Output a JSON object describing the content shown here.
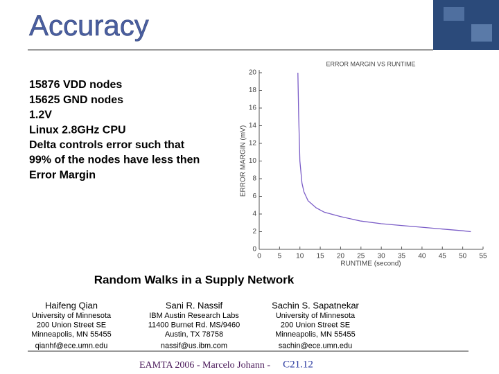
{
  "slide": {
    "title": "Accuracy",
    "bullets": [
      "15876 VDD nodes",
      "15625 GND nodes",
      "1.2V",
      "Linux 2.8GHz CPU",
      "Delta controls error such that",
      "99% of the nodes have less then",
      "Error Margin"
    ],
    "paper": {
      "title": "Random Walks in a Supply Network",
      "authors": [
        {
          "name": "Haifeng Qian",
          "lines": [
            "University of Minnesota",
            "200 Union Street SE",
            "Minneapolis, MN 55455",
            "qianhf@ece.umn.edu"
          ]
        },
        {
          "name": "Sani R. Nassif",
          "lines": [
            "IBM Austin Research Labs",
            "11400 Burnet Rd. MS/9460",
            "Austin, TX 78758",
            "nassif@us.ibm.com"
          ]
        },
        {
          "name": "Sachin S. Sapatnekar",
          "lines": [
            "University of Minnesota",
            "200 Union Street SE",
            "Minneapolis, MN 55455",
            "sachin@ece.umn.edu"
          ]
        }
      ]
    },
    "footer": {
      "text": "EAMTA 2006 - Marcelo Johann -",
      "code": "C21.12"
    }
  },
  "chart_data": {
    "type": "line",
    "title": "ERROR MARGIN VS RUNTIME",
    "x_label": "RUNTIME (second)",
    "y_label": "ERROR MARGIN (mV)",
    "x": [
      9.5,
      9.7,
      10,
      10.5,
      11,
      12,
      14,
      16,
      20,
      25,
      30,
      35,
      40,
      45,
      50,
      52
    ],
    "values": [
      20,
      15,
      10,
      7.5,
      6.5,
      5.5,
      4.7,
      4.2,
      3.7,
      3.2,
      2.9,
      2.7,
      2.5,
      2.3,
      2.1,
      2.0
    ],
    "color": "#7a5cc7",
    "xlim": [
      0,
      55
    ],
    "ylim": [
      0,
      20
    ],
    "xticks": [
      0,
      5,
      10,
      15,
      20,
      25,
      30,
      35,
      40,
      45,
      50,
      55
    ],
    "yticks": [
      0,
      2,
      4,
      6,
      8,
      10,
      12,
      14,
      16,
      18,
      20
    ]
  }
}
